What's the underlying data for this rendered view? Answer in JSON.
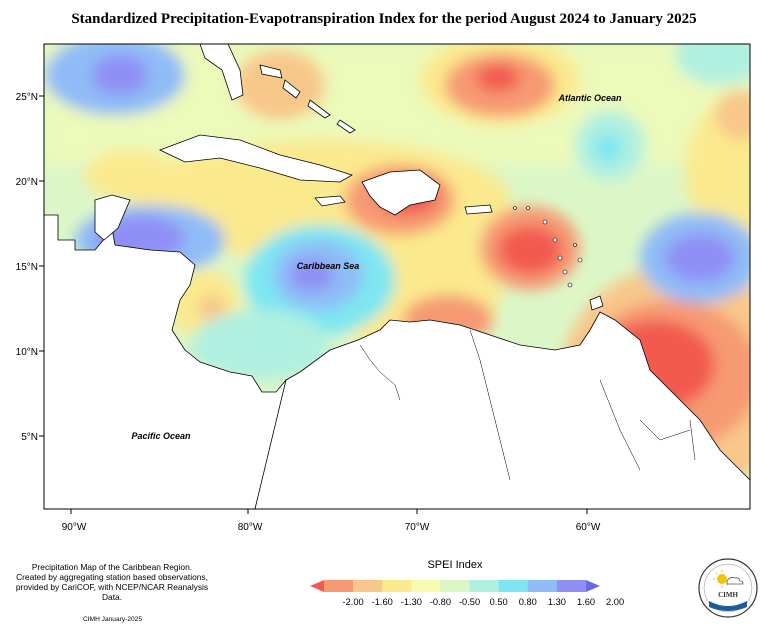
{
  "title": "Standardized Precipitation-Evapotranspiration Index for the period August 2024 to January 2025",
  "map": {
    "labels": {
      "atlantic": "Atlantic Ocean",
      "caribbean": "Caribbean Sea",
      "pacific": "Pacific Ocean"
    },
    "lat_ticks": [
      "25°N",
      "20°N",
      "15°N",
      "10°N",
      "5°N"
    ],
    "lon_ticks": [
      "90°W",
      "80°W",
      "70°W",
      "60°W"
    ],
    "extent": {
      "lon": [
        -92,
        -51
      ],
      "lat": [
        1,
        28
      ]
    }
  },
  "legend": {
    "title": "SPEI Index",
    "labels": [
      "-2.00",
      "-1.60",
      "-1.30",
      "-0.80",
      "-0.50",
      "0.50",
      "0.80",
      "1.30",
      "1.60",
      "2.00"
    ],
    "colors": [
      "#f25a50",
      "#f69a73",
      "#f8c78a",
      "#fbe98e",
      "#f7fbb0",
      "#dcf7c7",
      "#b0f0e0",
      "#7ee6f1",
      "#8fbcf7",
      "#8f8ff5",
      "#6b6be0"
    ]
  },
  "credit": {
    "line1": "Precipitation Map of the Caribbean Region.",
    "line2": "Created by aggregating station based observations,",
    "line3": "provided by CariCOF, with NCEP/NCAR Reanalysis Data.",
    "date": "CIMH January-2025"
  },
  "logo": {
    "text": "CIMH",
    "icon": "cimh-logo-icon"
  }
}
